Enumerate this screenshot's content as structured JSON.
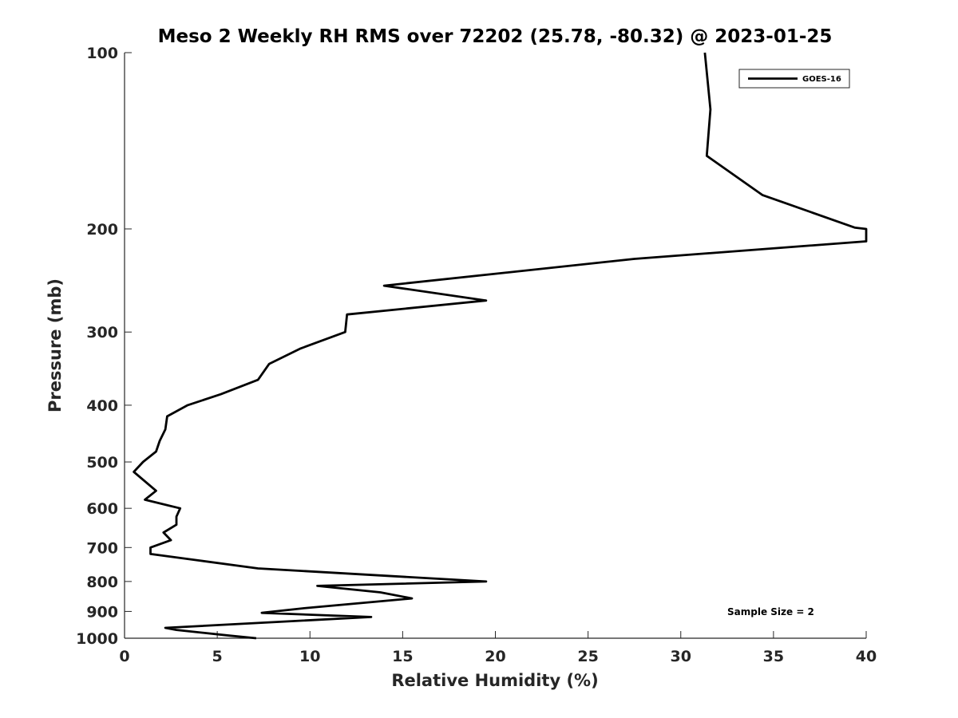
{
  "chart_data": {
    "type": "line",
    "title": "Meso 2 Weekly RH RMS over 72202 (25.78, -80.32) @ 2023-01-25",
    "xlabel": "Relative Humidity (%)",
    "ylabel": "Pressure (mb)",
    "xlim": [
      0,
      40
    ],
    "ylim": [
      100,
      1000
    ],
    "y_scale": "log",
    "y_reversed": true,
    "grid": false,
    "legend_placement": "top-right",
    "line_color": "#000000",
    "x_ticks": [
      "0",
      "5",
      "10",
      "15",
      "20",
      "25",
      "30",
      "35",
      "40"
    ],
    "y_ticks": [
      "100",
      "200",
      "300",
      "400",
      "500",
      "600",
      "700",
      "800",
      "900",
      "1000"
    ],
    "series": [
      {
        "name": "GOES-16",
        "points": [
          [
            31.3,
            100
          ],
          [
            31.6,
            125
          ],
          [
            31.4,
            150
          ],
          [
            34.4,
            175
          ],
          [
            39.4,
            199
          ],
          [
            40.0,
            200
          ],
          [
            40.0,
            210
          ],
          [
            27.5,
            225
          ],
          [
            14.0,
            250
          ],
          [
            19.5,
            265
          ],
          [
            12.0,
            280
          ],
          [
            11.9,
            300
          ],
          [
            9.5,
            320
          ],
          [
            7.8,
            340
          ],
          [
            7.2,
            362
          ],
          [
            5.2,
            383
          ],
          [
            3.4,
            400
          ],
          [
            2.3,
            418
          ],
          [
            2.2,
            440
          ],
          [
            1.9,
            460
          ],
          [
            1.7,
            480
          ],
          [
            1.0,
            500
          ],
          [
            0.5,
            520
          ],
          [
            1.7,
            560
          ],
          [
            1.1,
            580
          ],
          [
            3.0,
            600
          ],
          [
            2.8,
            620
          ],
          [
            2.8,
            640
          ],
          [
            2.1,
            660
          ],
          [
            2.5,
            680
          ],
          [
            1.4,
            700
          ],
          [
            1.4,
            718
          ],
          [
            3.8,
            735
          ],
          [
            7.2,
            760
          ],
          [
            19.5,
            800
          ],
          [
            10.4,
            814
          ],
          [
            13.8,
            835
          ],
          [
            15.5,
            855
          ],
          [
            9.8,
            888
          ],
          [
            7.4,
            905
          ],
          [
            13.3,
            920
          ],
          [
            2.2,
            960
          ],
          [
            2.8,
            968
          ],
          [
            5.7,
            990
          ],
          [
            7.1,
            1000
          ]
        ]
      }
    ],
    "annotation": "Sample Size = 2"
  }
}
